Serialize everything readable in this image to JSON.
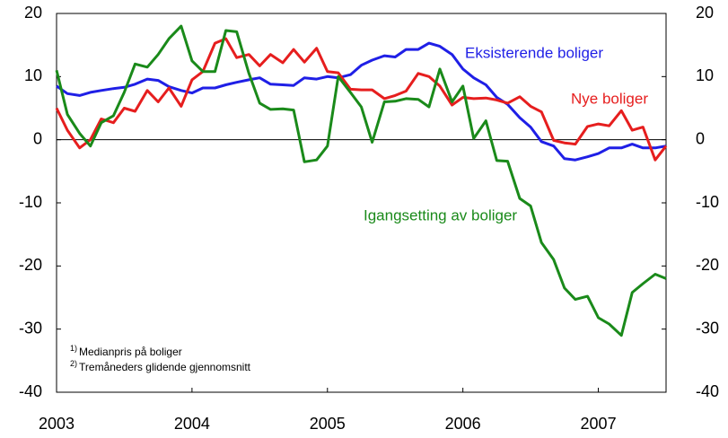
{
  "chart_data": {
    "type": "line",
    "xlim": [
      2003,
      2007.5
    ],
    "xticks": [
      2003,
      2004,
      2005,
      2006,
      2007
    ],
    "ylim": [
      -40,
      20
    ],
    "yticks": [
      -40,
      -30,
      -20,
      -10,
      0,
      10,
      20
    ],
    "y2lim": [
      -40,
      20
    ],
    "y2ticks": [
      -40,
      -30,
      -20,
      -10,
      0,
      10,
      20
    ],
    "x": [
      2003.0,
      2003.08,
      2003.17,
      2003.25,
      2003.33,
      2003.42,
      2003.5,
      2003.58,
      2003.67,
      2003.75,
      2003.83,
      2003.92,
      2004.0,
      2004.08,
      2004.17,
      2004.25,
      2004.33,
      2004.42,
      2004.5,
      2004.58,
      2004.67,
      2004.75,
      2004.83,
      2004.92,
      2005.0,
      2005.08,
      2005.17,
      2005.25,
      2005.33,
      2005.42,
      2005.5,
      2005.58,
      2005.67,
      2005.75,
      2005.83,
      2005.92,
      2006.0,
      2006.08,
      2006.17,
      2006.25,
      2006.33,
      2006.42,
      2006.5,
      2006.58,
      2006.67,
      2006.75,
      2006.83,
      2006.92,
      2007.0,
      2007.08,
      2007.17,
      2007.25,
      2007.33,
      2007.42,
      2007.5
    ],
    "series": [
      {
        "name": "Eksisterende boliger",
        "color": "#1f1fe6",
        "label_at": [
          518,
          60
        ],
        "values": [
          8.5,
          7.3,
          7,
          7.5,
          7.8,
          8.1,
          8.3,
          8.8,
          9.6,
          9.4,
          8.4,
          7.8,
          7.4,
          8.2,
          8.2,
          8.7,
          9.1,
          9.5,
          9.8,
          8.8,
          8.7,
          8.6,
          9.8,
          9.6,
          10,
          9.8,
          10.3,
          11.8,
          12.6,
          13.3,
          13.1,
          14.3,
          14.3,
          15.3,
          14.8,
          13.5,
          11.2,
          9.8,
          8.7,
          6.7,
          5.6,
          3.5,
          2,
          -0.3,
          -1,
          -3,
          -3.2,
          -2.7,
          -2.2,
          -1.3,
          -1.3,
          -0.7,
          -1.3,
          -1.3,
          -1
        ]
      },
      {
        "name": "Nye boliger",
        "color": "#e61e1e",
        "values": [
          5,
          1.5,
          -1.3,
          0,
          3.3,
          2.7,
          5,
          4.5,
          7.8,
          6,
          8.2,
          5.3,
          9.5,
          10.8,
          15.3,
          16,
          13,
          13.5,
          11.7,
          13.5,
          12.2,
          14.3,
          12.3,
          14.5,
          10.8,
          10.6,
          8,
          7.9,
          7.9,
          6.5,
          7,
          7.7,
          10.5,
          10,
          8.5,
          5.5,
          6.7,
          6.5,
          6.6,
          6.3,
          5.8,
          6.8,
          5.3,
          4.4,
          -0.1,
          -0.5,
          -0.7,
          2.1,
          2.5,
          2.2,
          4.6,
          1.5,
          2,
          -3.2,
          -1
        ]
      },
      {
        "name": "Igangsetting av boliger",
        "color": "#1a8a1a",
        "values": [
          11,
          4,
          1,
          -1,
          2.7,
          3.8,
          7.5,
          12,
          11.5,
          13.5,
          16,
          18,
          12.5,
          10.8,
          10.8,
          17.3,
          17.1,
          10.5,
          5.8,
          4.8,
          4.9,
          4.7,
          -3.5,
          -3.2,
          -1,
          10,
          7.5,
          5.2,
          -0.4,
          6,
          6.1,
          6.5,
          6.4,
          5.2,
          11.2,
          6,
          8.5,
          0.2,
          3,
          -3.3,
          -3.4,
          -9.3,
          -10.5,
          -16.3,
          -19,
          -23.5,
          -25.3,
          -24.8,
          -28.2,
          -29.2,
          -31,
          -24.2,
          -22.8,
          -21.3,
          -22
        ]
      }
    ],
    "footnotes": [
      {
        "marker": "1)",
        "text": "Medianpris på boliger"
      },
      {
        "marker": "2)",
        "text": "Tremåneders glidende gjennomsnitt"
      }
    ]
  }
}
